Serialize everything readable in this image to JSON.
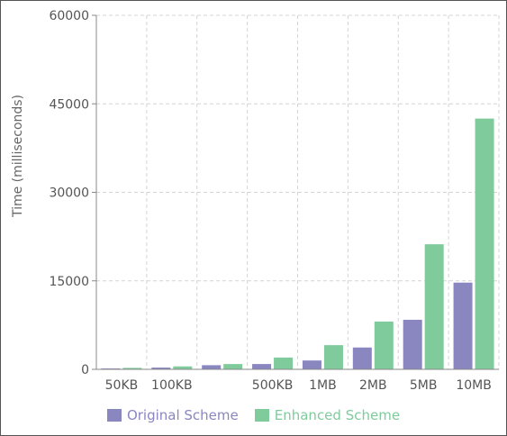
{
  "chart_data": {
    "type": "bar",
    "categories": [
      "50KB",
      "100KB",
      "",
      "500KB",
      "1MB",
      "2MB",
      "5MB",
      "10MB"
    ],
    "series": [
      {
        "name": "Original Scheme",
        "color": "#8a86c0",
        "values": [
          150,
          300,
          700,
          900,
          1500,
          3700,
          8400,
          14700
        ]
      },
      {
        "name": "Enhanced Scheme",
        "color": "#7fcb9b",
        "values": [
          250,
          500,
          900,
          2000,
          4100,
          8100,
          21200,
          42500
        ]
      }
    ],
    "ylabel": "Time (milliseconds)",
    "xlabel": "",
    "ylim": [
      0,
      60000
    ],
    "yticks": [
      "0",
      "15000",
      "30000",
      "45000",
      "60000"
    ],
    "grid": true,
    "legend": "bottom"
  }
}
